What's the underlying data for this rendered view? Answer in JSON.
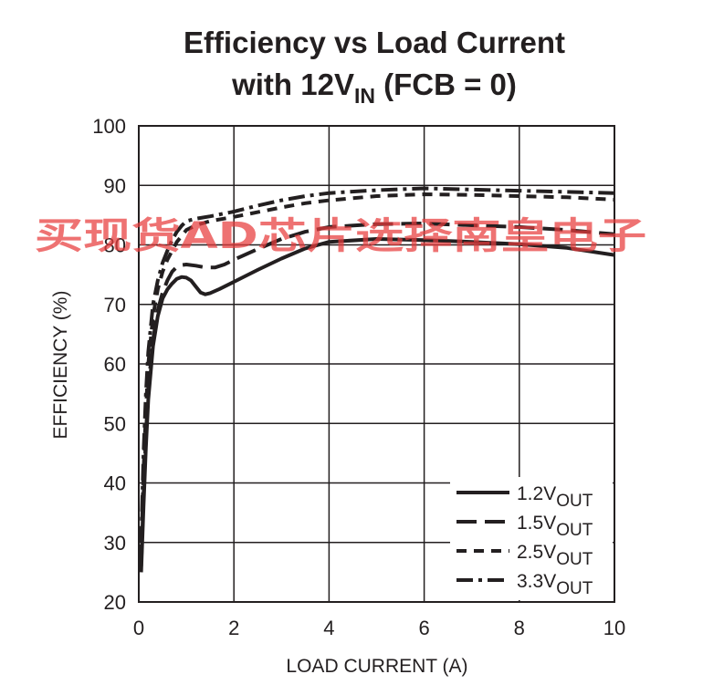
{
  "title": {
    "line1": "Efficiency vs Load Current",
    "line2_prefix": "with 12V",
    "line2_sub": "IN",
    "line2_suffix": " (FCB = 0)"
  },
  "watermark": "买现货AD芯片选择南皇电子",
  "colors": {
    "ink": "#231f20",
    "grid": "#231f20",
    "watermark": "#e83c3c"
  },
  "chart_data": {
    "type": "line",
    "xlabel": "LOAD CURRENT (A)",
    "ylabel": "EFFICIENCY (%)",
    "xlim": [
      0,
      10
    ],
    "ylim": [
      20,
      100
    ],
    "xticks": [
      0,
      2,
      4,
      6,
      8,
      10
    ],
    "yticks": [
      20,
      30,
      40,
      50,
      60,
      70,
      80,
      90,
      100
    ],
    "grid": true,
    "legend_position": "bottom-right",
    "series": [
      {
        "name": "1.2V",
        "name_sub": "OUT",
        "dash": "solid",
        "x": [
          0.05,
          0.1,
          0.15,
          0.2,
          0.3,
          0.4,
          0.5,
          0.6,
          0.7,
          0.8,
          0.9,
          1.0,
          1.1,
          1.2,
          1.3,
          1.4,
          1.5,
          1.7,
          2,
          2.5,
          3,
          3.5,
          4,
          5,
          6,
          7,
          8,
          9,
          10
        ],
        "y": [
          25,
          36,
          46,
          54,
          63,
          68,
          71,
          72.5,
          73.5,
          74.3,
          74.6,
          74.5,
          74,
          73,
          72,
          71.7,
          71.9,
          72.6,
          73.8,
          75.8,
          77.7,
          79.4,
          80.5,
          81,
          80.8,
          80.5,
          80.1,
          79.5,
          78.3
        ]
      },
      {
        "name": "1.5V",
        "name_sub": "OUT",
        "dash": "long-dash",
        "x": [
          0.05,
          0.1,
          0.15,
          0.2,
          0.3,
          0.4,
          0.5,
          0.6,
          0.7,
          0.8,
          0.9,
          1.0,
          1.2,
          1.4,
          1.6,
          1.8,
          2,
          2.5,
          3,
          3.5,
          4,
          5,
          6,
          7,
          8,
          9,
          10
        ],
        "y": [
          26,
          38,
          48,
          56,
          64,
          69,
          72,
          74,
          75.5,
          76.3,
          76.6,
          76.7,
          76.5,
          76.2,
          76.2,
          76.7,
          77.5,
          79.3,
          81,
          82.2,
          83,
          83.5,
          83.6,
          83.3,
          83,
          82.5,
          81.8
        ]
      },
      {
        "name": "2.5V",
        "name_sub": "OUT",
        "dash": "short-dash",
        "x": [
          0.05,
          0.1,
          0.15,
          0.2,
          0.3,
          0.4,
          0.5,
          0.6,
          0.7,
          0.8,
          0.9,
          1.0,
          1.2,
          1.5,
          2,
          2.5,
          3,
          3.5,
          4,
          5,
          6,
          7,
          8,
          9,
          10
        ],
        "y": [
          28,
          42,
          52,
          60,
          68,
          72.5,
          75.5,
          77.5,
          79,
          80.5,
          81.5,
          82.5,
          83.3,
          84,
          84.7,
          85.5,
          86.3,
          87,
          87.5,
          88.2,
          88.5,
          88.4,
          88.2,
          88,
          87.6
        ]
      },
      {
        "name": "3.3V",
        "name_sub": "OUT",
        "dash": "dash-dot",
        "x": [
          0.05,
          0.1,
          0.15,
          0.2,
          0.3,
          0.4,
          0.5,
          0.6,
          0.7,
          0.8,
          0.9,
          1.0,
          1.2,
          1.5,
          2,
          2.5,
          3,
          3.5,
          4,
          5,
          6,
          7,
          8,
          9,
          10
        ],
        "y": [
          30,
          45,
          55,
          62,
          70,
          74,
          77,
          79,
          80.8,
          82.2,
          83.2,
          84,
          84.4,
          84.8,
          85.6,
          86.6,
          87.5,
          88.2,
          88.7,
          89.2,
          89.5,
          89.3,
          89.1,
          88.9,
          88.7
        ]
      }
    ]
  }
}
